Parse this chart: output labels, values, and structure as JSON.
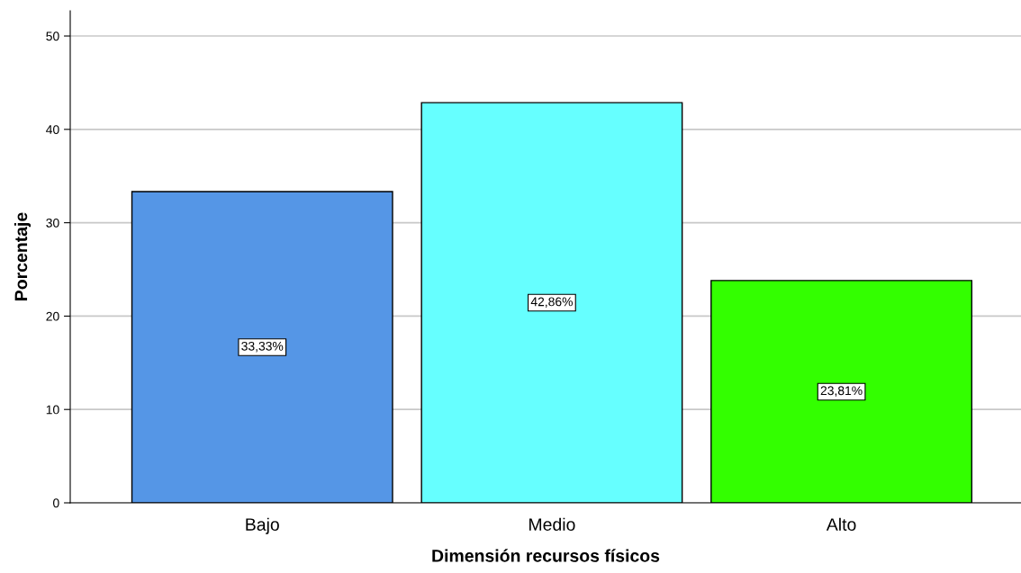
{
  "chart_data": {
    "type": "bar",
    "xlabel": "Dimensión recursos físicos",
    "ylabel": "Porcentaje",
    "categories": [
      "Bajo",
      "Medio",
      "Alto"
    ],
    "values": [
      33.33,
      42.86,
      23.81
    ],
    "colors": [
      "#5596e6",
      "#66ffff",
      "#33ff00"
    ],
    "value_labels": [
      "33,33%",
      "42,86%",
      "23,81%"
    ],
    "ylim": [
      0,
      52.7
    ],
    "yticks": [
      0,
      10,
      20,
      30,
      40,
      50
    ],
    "grid": "y",
    "legend": false
  }
}
